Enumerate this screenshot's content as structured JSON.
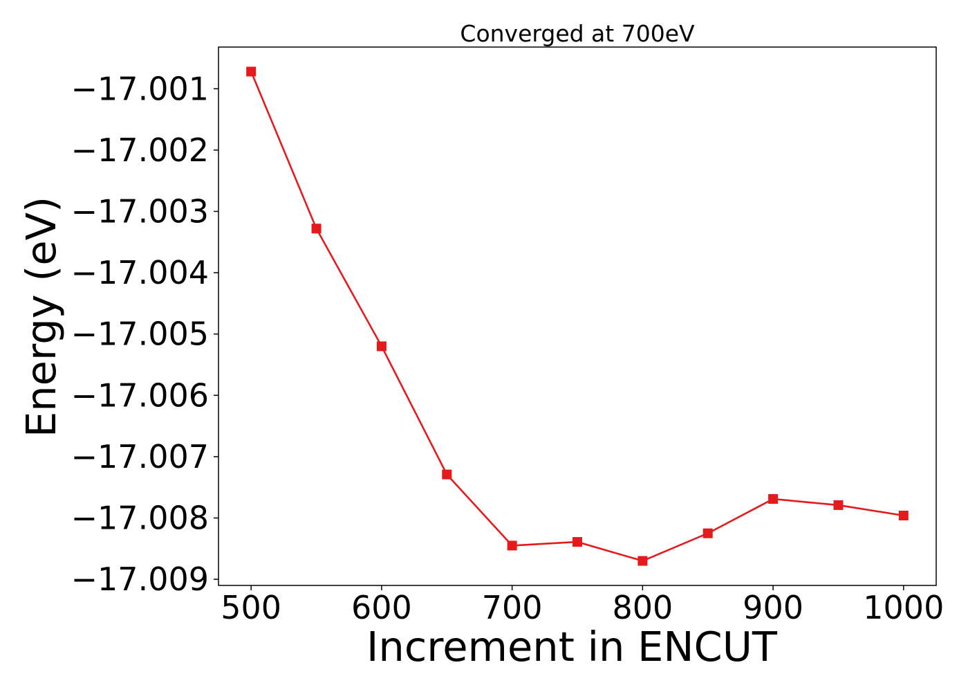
{
  "chart_data": {
    "type": "line",
    "title": "Converged at 700eV",
    "xlabel": "Increment in ENCUT",
    "ylabel": "Energy (eV)",
    "x": [
      500,
      550,
      600,
      650,
      700,
      750,
      800,
      850,
      900,
      950,
      1000
    ],
    "series": [
      {
        "values": [
          -17.00072,
          -17.00328,
          -17.0052,
          -17.00729,
          -17.00845,
          -17.00839,
          -17.0087,
          -17.00825,
          -17.00769,
          -17.00779,
          -17.00796
        ],
        "color": "#e41a1c",
        "marker": "square"
      }
    ],
    "xticks": [
      500,
      600,
      700,
      800,
      900,
      1000
    ],
    "xtick_labels": [
      "500",
      "600",
      "700",
      "800",
      "900",
      "1000"
    ],
    "yticks": [
      -17.001,
      -17.002,
      -17.003,
      -17.004,
      -17.005,
      -17.006,
      -17.007,
      -17.008,
      -17.009
    ],
    "ytick_labels": [
      "−17.001",
      "−17.002",
      "−17.003",
      "−17.004",
      "−17.005",
      "−17.006",
      "−17.007",
      "−17.008",
      "−17.009"
    ],
    "xlim": [
      475,
      1025
    ],
    "ylim": [
      -17.0091,
      -17.00032
    ],
    "grid": false,
    "legend": "none"
  }
}
